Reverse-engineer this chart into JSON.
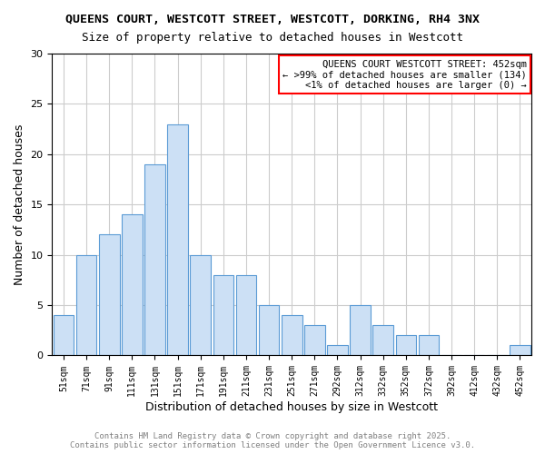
{
  "title1": "QUEENS COURT, WESTCOTT STREET, WESTCOTT, DORKING, RH4 3NX",
  "title2": "Size of property relative to detached houses in Westcott",
  "xlabel": "Distribution of detached houses by size in Westcott",
  "ylabel": "Number of detached houses",
  "labels": [
    "51sqm",
    "71sqm",
    "91sqm",
    "111sqm",
    "131sqm",
    "151sqm",
    "171sqm",
    "191sqm",
    "211sqm",
    "231sqm",
    "251sqm",
    "271sqm",
    "292sqm",
    "312sqm",
    "332sqm",
    "352sqm",
    "372sqm",
    "392sqm",
    "412sqm",
    "432sqm",
    "452sqm"
  ],
  "values": [
    4,
    10,
    12,
    14,
    19,
    23,
    10,
    8,
    8,
    5,
    4,
    3,
    1,
    5,
    3,
    2,
    2,
    0,
    0,
    0,
    1
  ],
  "bar_color": "#cce0f5",
  "bar_edge_color": "#5b9bd5",
  "legend_lines": [
    "QUEENS COURT WESTCOTT STREET: 452sqm",
    "← >99% of detached houses are smaller (134)",
    "<1% of detached houses are larger (0) →"
  ],
  "legend_border_color": "red",
  "ylim": [
    0,
    30
  ],
  "yticks": [
    0,
    5,
    10,
    15,
    20,
    25,
    30
  ],
  "footer": "Contains HM Land Registry data © Crown copyright and database right 2025.\nContains public sector information licensed under the Open Government Licence v3.0.",
  "bg_color": "white",
  "grid_color": "#cccccc"
}
